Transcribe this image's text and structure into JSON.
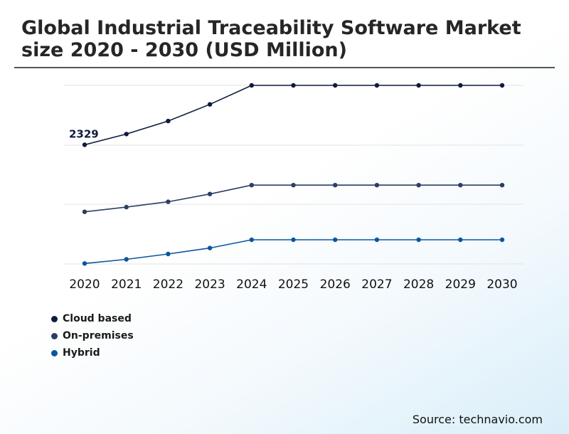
{
  "header": {
    "title": "Global Industrial Traceability Software Market size 2020 - 2030 (USD Million)"
  },
  "footer": {
    "source": "Source: technavio.com"
  },
  "colors": {
    "cloud_based": "#0d1b3e",
    "on_premises": "#2c3e66",
    "hybrid": "#0b56a0",
    "gridline": "#e3e3e3",
    "title_rule": "#555555"
  },
  "chart_data": {
    "type": "line",
    "x": [
      "2020",
      "2021",
      "2022",
      "2023",
      "2024",
      "2025",
      "2026",
      "2027",
      "2028",
      "2029",
      "2030"
    ],
    "series": [
      {
        "name": "Cloud based",
        "values": [
          2329,
          2510,
          2730,
          3010,
          3330,
          3330,
          3330,
          3330,
          3330,
          3330,
          3330
        ]
      },
      {
        "name": "On-premises",
        "values": [
          1200,
          1280,
          1370,
          1500,
          1650,
          1650,
          1650,
          1650,
          1650,
          1650,
          1650
        ]
      },
      {
        "name": "Hybrid",
        "values": [
          330,
          400,
          490,
          590,
          730,
          730,
          730,
          730,
          730,
          730,
          730
        ]
      }
    ],
    "data_labels": [
      {
        "series": "Cloud based",
        "x": "2020",
        "text": "2329"
      }
    ],
    "ylim": [
      322,
      3330
    ],
    "grid": true,
    "y_axis_tick_labels_shown": false,
    "legend_position": "bottom-left",
    "xlabel": "",
    "ylabel": ""
  }
}
